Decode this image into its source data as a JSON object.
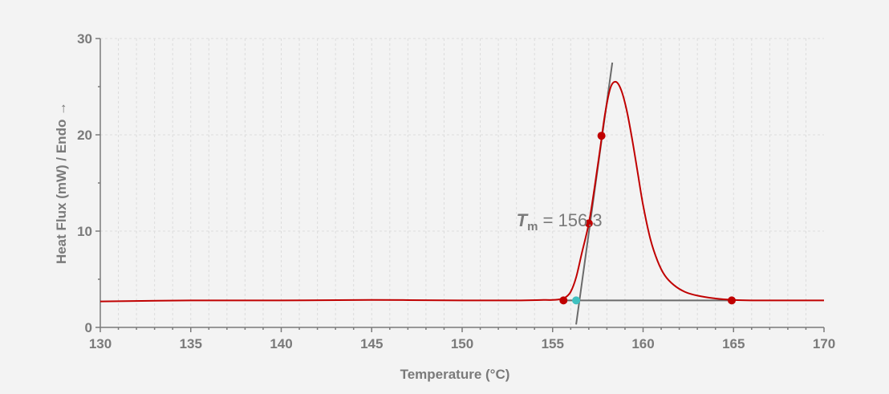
{
  "chart_data": {
    "type": "line",
    "title": "",
    "xlabel": "Temperature (°C)",
    "ylabel": "Heat Flux (mW) / Endo →",
    "xlim": [
      130,
      170
    ],
    "ylim": [
      0,
      30
    ],
    "x_ticks": [
      130,
      135,
      140,
      145,
      150,
      155,
      160,
      165,
      170
    ],
    "y_ticks": [
      0,
      10,
      20,
      30
    ],
    "grid": "vertical dashed at 1 °C intervals, horizontal dashed at 10 mW",
    "legend": "none",
    "colors": {
      "curve": "#c00000",
      "marker": "#c00000",
      "onset_marker": "#3fc1c0",
      "tangent": "#6b6b6b",
      "axis": "#7a7a7a"
    },
    "series": [
      {
        "x": [
          130,
          135,
          140,
          145,
          150,
          153,
          154.5,
          155,
          155.5,
          155.7,
          156,
          156.3,
          156.6,
          157,
          157.3,
          157.6,
          157.9,
          158.2,
          158.5,
          158.8,
          159.1,
          159.4,
          159.7,
          160,
          160.4,
          160.8,
          161.2,
          161.7,
          162.3,
          163,
          164,
          165,
          166,
          168,
          170
        ],
        "y": [
          2.7,
          2.8,
          2.8,
          2.85,
          2.8,
          2.8,
          2.85,
          2.85,
          2.95,
          3.1,
          3.7,
          5.2,
          7.6,
          10.8,
          14.3,
          18.2,
          22.2,
          24.9,
          25.5,
          24.6,
          22.5,
          19.5,
          16.1,
          12.7,
          9.2,
          6.9,
          5.4,
          4.4,
          3.7,
          3.3,
          3.0,
          2.85,
          2.8,
          2.8,
          2.8
        ]
      }
    ],
    "markers": [
      {
        "x": 155.6,
        "y": 2.8
      },
      {
        "x": 157.0,
        "y": 10.8
      },
      {
        "x": 157.7,
        "y": 19.9
      },
      {
        "x": 164.9,
        "y": 2.8
      }
    ],
    "onset_point": {
      "x": 156.3,
      "y": 2.8
    },
    "baseline_line": {
      "x": [
        155.6,
        164.9
      ],
      "y": [
        2.8,
        2.8
      ]
    },
    "tangent_line": {
      "x": [
        156.3,
        158.3
      ],
      "y": [
        0.3,
        27.5
      ]
    },
    "annotation": {
      "symbol": "T",
      "subscript": "m",
      "text": " = 156.3",
      "x": 153.0,
      "y": 10.5
    }
  }
}
